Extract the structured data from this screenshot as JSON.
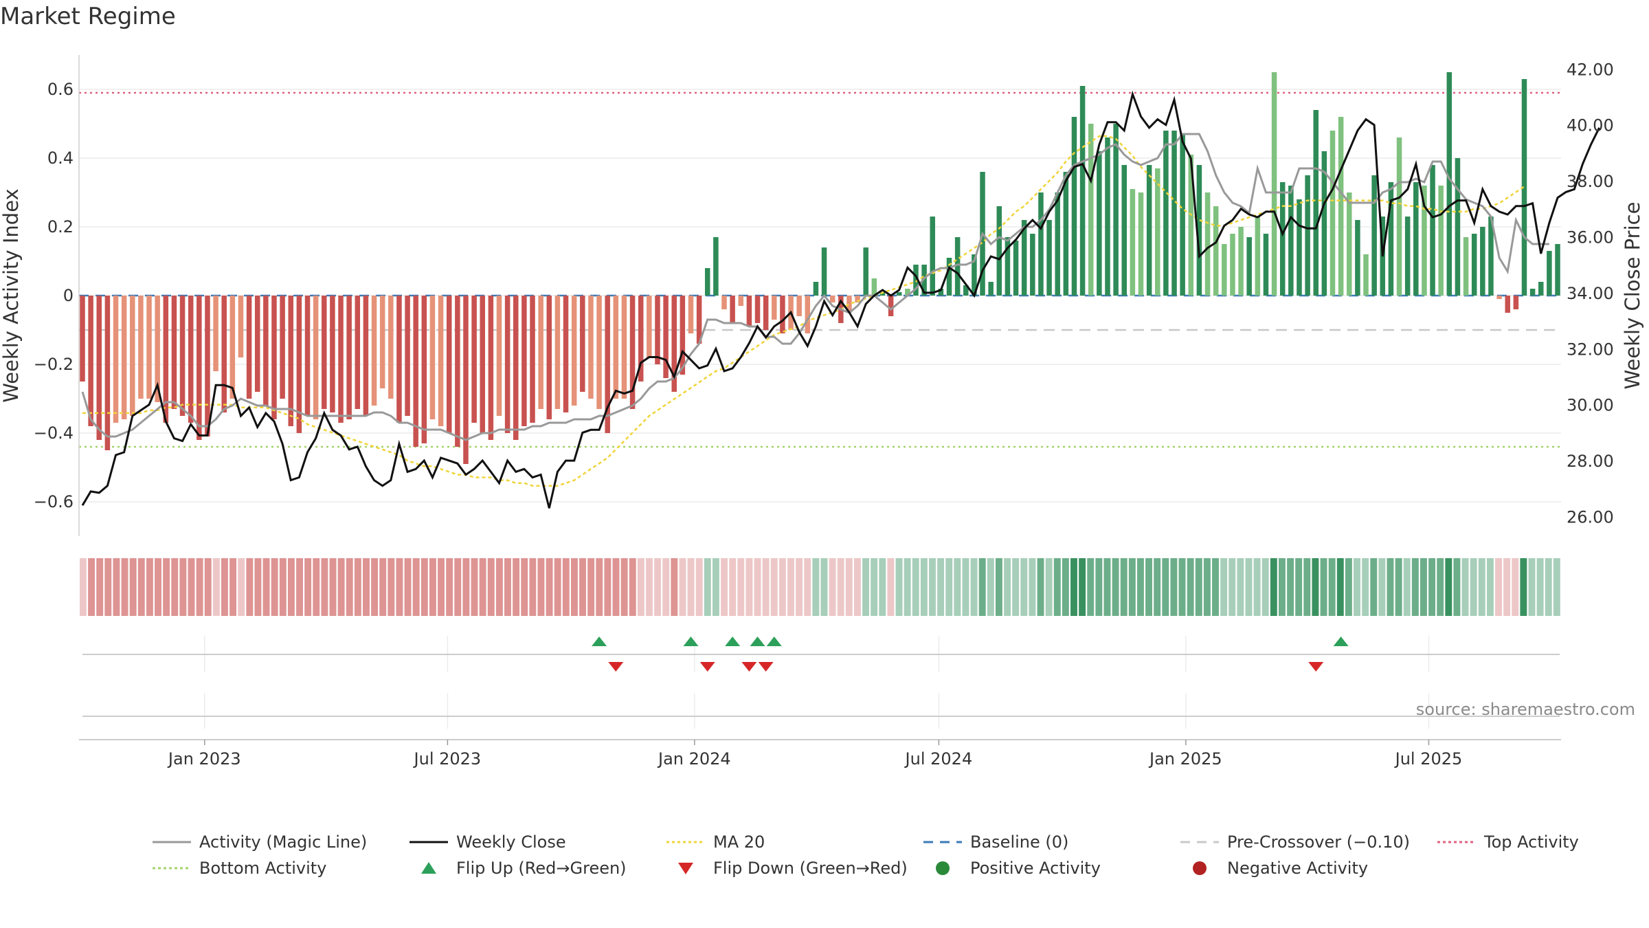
{
  "title": "Market Regime",
  "source": "source: sharemaestro.com",
  "colors": {
    "neg_strong": "#c85250",
    "neg_light": "#e59278",
    "pos_strong": "#2e8b57",
    "pos_light": "#7fc17f",
    "activity_line": "#999999",
    "close_line": "#111111",
    "ma_line": "#f0d43a",
    "baseline": "#3a7ab8",
    "pre_crossover": "#c8c8c8",
    "top_activity": "#e0607e",
    "bottom_activity": "#a5d36a",
    "flip_up": "#2ca05a",
    "flip_down": "#d62728",
    "pos_dot": "#2a8a3a",
    "neg_dot": "#b22222"
  },
  "chart_data": {
    "type": "bar",
    "left_axis": {
      "label": "Weekly Activity Index",
      "ylim": [
        -0.7,
        0.7
      ],
      "ticks": [
        "0.6",
        "0.4",
        "0.2",
        "0",
        "−0.2",
        "−0.4",
        "−0.6"
      ],
      "tick_values": [
        0.6,
        0.4,
        0.2,
        0,
        -0.2,
        -0.4,
        -0.6
      ]
    },
    "right_axis": {
      "label": "Weekly Close Price",
      "ylim": [
        25.3,
        42.5
      ],
      "ticks": [
        "42.00",
        "40.00",
        "38.00",
        "36.00",
        "34.00",
        "32.00",
        "30.00",
        "28.00",
        "26.00"
      ],
      "tick_values": [
        42,
        40,
        38,
        36,
        34,
        32,
        30,
        28,
        26
      ]
    },
    "x_axis": {
      "start": "2022-10-02",
      "end": "2025-10-05",
      "ticks": [
        {
          "label": "Jan 2023",
          "date": "2023-01-01"
        },
        {
          "label": "Jul 2023",
          "date": "2023-07-01"
        },
        {
          "label": "Jan 2024",
          "date": "2024-01-01"
        },
        {
          "label": "Jul 2024",
          "date": "2024-07-01"
        },
        {
          "label": "Jan 2025",
          "date": "2025-01-01"
        },
        {
          "label": "Jul 2025",
          "date": "2025-07-01"
        }
      ]
    },
    "reference_lines": {
      "top_activity": 0.59,
      "bottom_activity": -0.44,
      "pre_crossover": -0.1,
      "baseline": 0
    },
    "activity_index": [
      -0.25,
      -0.38,
      -0.42,
      -0.45,
      -0.37,
      -0.36,
      -0.35,
      -0.3,
      -0.3,
      -0.31,
      -0.37,
      -0.33,
      -0.35,
      -0.37,
      -0.42,
      -0.41,
      -0.22,
      -0.34,
      -0.3,
      -0.18,
      -0.3,
      -0.28,
      -0.32,
      -0.36,
      -0.3,
      -0.38,
      -0.4,
      -0.35,
      -0.36,
      -0.33,
      -0.34,
      -0.37,
      -0.36,
      -0.33,
      -0.35,
      -0.32,
      -0.27,
      -0.3,
      -0.37,
      -0.35,
      -0.44,
      -0.43,
      -0.36,
      -0.38,
      -0.4,
      -0.44,
      -0.49,
      -0.37,
      -0.4,
      -0.42,
      -0.35,
      -0.4,
      -0.42,
      -0.38,
      -0.37,
      -0.33,
      -0.36,
      -0.33,
      -0.34,
      -0.32,
      -0.28,
      -0.3,
      -0.33,
      -0.4,
      -0.3,
      -0.3,
      -0.33,
      -0.25,
      -0.18,
      -0.2,
      -0.24,
      -0.28,
      -0.23,
      -0.11,
      -0.14,
      0.08,
      0.17,
      -0.04,
      -0.08,
      -0.03,
      -0.09,
      -0.08,
      -0.1,
      -0.07,
      -0.11,
      -0.1,
      -0.06,
      -0.11,
      0.04,
      0.14,
      -0.02,
      -0.08,
      -0.05,
      -0.02,
      0.14,
      0.05,
      0.01,
      -0.06,
      0.01,
      0.02,
      0.09,
      0.09,
      0.23,
      0.02,
      0.11,
      0.17,
      0.03,
      0.12,
      0.36,
      0.04,
      0.26,
      0.17,
      0.16,
      0.22,
      0.18,
      0.3,
      0.22,
      0.3,
      0.36,
      0.52,
      0.61,
      0.5,
      0.42,
      0.46,
      0.5,
      0.38,
      0.31,
      0.3,
      0.38,
      0.37,
      0.48,
      0.48,
      0.47,
      0.41,
      0.38,
      0.3,
      0.26,
      0.15,
      0.18,
      0.2,
      0.17,
      0.23,
      0.18,
      0.65,
      0.33,
      0.32,
      0.28,
      0.35,
      0.54,
      0.42,
      0.48,
      0.52,
      0.3,
      0.22,
      0.12,
      0.35,
      0.23,
      0.33,
      0.46,
      0.23,
      0.33,
      0.32,
      0.38,
      0.32,
      0.65,
      0.4,
      0.17,
      0.18,
      0.2,
      0.23,
      -0.01,
      -0.05,
      -0.04,
      0.63,
      0.02,
      0.04,
      0.13,
      0.15
    ],
    "strong_flags": [
      1,
      1,
      1,
      1,
      0,
      0,
      0,
      0,
      0,
      0,
      1,
      1,
      1,
      1,
      1,
      1,
      0,
      1,
      0,
      0,
      1,
      1,
      1,
      1,
      1,
      1,
      1,
      1,
      0,
      1,
      1,
      1,
      1,
      1,
      1,
      0,
      0,
      0,
      1,
      1,
      1,
      1,
      0,
      0,
      1,
      1,
      1,
      1,
      1,
      1,
      0,
      1,
      1,
      1,
      1,
      0,
      1,
      0,
      1,
      0,
      1,
      0,
      0,
      1,
      0,
      0,
      1,
      1,
      0,
      1,
      1,
      1,
      1,
      0,
      1,
      1,
      1,
      0,
      1,
      0,
      1,
      1,
      1,
      0,
      1,
      0,
      0,
      0,
      1,
      1,
      0,
      1,
      0,
      0,
      1,
      0,
      1,
      1,
      1,
      0,
      1,
      1,
      1,
      1,
      1,
      1,
      1,
      1,
      1,
      1,
      1,
      1,
      1,
      1,
      1,
      1,
      1,
      1,
      1,
      1,
      1,
      0,
      1,
      1,
      1,
      1,
      0,
      0,
      1,
      0,
      1,
      1,
      1,
      0,
      1,
      0,
      0,
      0,
      0,
      0,
      1,
      0,
      1,
      0,
      1,
      1,
      1,
      1,
      1,
      1,
      0,
      0,
      0,
      1,
      0,
      1,
      1,
      1,
      0,
      1,
      1,
      0,
      1,
      0,
      1,
      1,
      0,
      1,
      1,
      1,
      0,
      1,
      1,
      1,
      1,
      1,
      1,
      1,
      1
    ],
    "activity_line": [
      -0.28,
      -0.36,
      -0.39,
      -0.41,
      -0.41,
      -0.4,
      -0.39,
      -0.37,
      -0.35,
      -0.33,
      -0.31,
      -0.31,
      -0.33,
      -0.35,
      -0.38,
      -0.38,
      -0.36,
      -0.33,
      -0.32,
      -0.3,
      -0.31,
      -0.32,
      -0.32,
      -0.33,
      -0.33,
      -0.33,
      -0.34,
      -0.35,
      -0.35,
      -0.35,
      -0.35,
      -0.35,
      -0.35,
      -0.35,
      -0.35,
      -0.34,
      -0.34,
      -0.35,
      -0.37,
      -0.37,
      -0.38,
      -0.39,
      -0.39,
      -0.39,
      -0.4,
      -0.41,
      -0.42,
      -0.41,
      -0.4,
      -0.4,
      -0.39,
      -0.39,
      -0.39,
      -0.39,
      -0.38,
      -0.38,
      -0.37,
      -0.37,
      -0.37,
      -0.36,
      -0.36,
      -0.36,
      -0.35,
      -0.35,
      -0.34,
      -0.33,
      -0.32,
      -0.3,
      -0.27,
      -0.25,
      -0.25,
      -0.24,
      -0.21,
      -0.17,
      -0.14,
      -0.07,
      -0.07,
      -0.08,
      -0.08,
      -0.08,
      -0.09,
      -0.09,
      -0.12,
      -0.12,
      -0.14,
      -0.14,
      -0.11,
      -0.07,
      -0.03,
      0.0,
      -0.03,
      -0.04,
      -0.05,
      -0.03,
      0.0,
      0.0,
      -0.02,
      -0.04,
      -0.02,
      0.0,
      0.02,
      0.05,
      0.07,
      0.08,
      0.08,
      0.09,
      0.09,
      0.1,
      0.18,
      0.15,
      0.17,
      0.16,
      0.18,
      0.2,
      0.2,
      0.22,
      0.25,
      0.3,
      0.35,
      0.38,
      0.39,
      0.4,
      0.41,
      0.43,
      0.44,
      0.41,
      0.39,
      0.38,
      0.39,
      0.4,
      0.44,
      0.44,
      0.47,
      0.47,
      0.47,
      0.42,
      0.35,
      0.3,
      0.27,
      0.26,
      0.24,
      0.37,
      0.3,
      0.3,
      0.3,
      0.3,
      0.37,
      0.37,
      0.37,
      0.36,
      0.33,
      0.3,
      0.27,
      0.27,
      0.27,
      0.27,
      0.3,
      0.31,
      0.33,
      0.33,
      0.34,
      0.33,
      0.39,
      0.39,
      0.34,
      0.31,
      0.28,
      0.27,
      0.26,
      0.23,
      0.11,
      0.07,
      0.22,
      0.17,
      0.15,
      0.15,
      0.15
    ],
    "weekly_close": [
      26.4,
      26.9,
      26.85,
      27.1,
      28.2,
      28.3,
      29.6,
      29.8,
      30.0,
      30.7,
      29.4,
      28.8,
      28.7,
      29.3,
      28.9,
      28.9,
      30.7,
      30.7,
      30.6,
      29.6,
      29.9,
      29.2,
      29.7,
      29.4,
      28.6,
      27.3,
      27.4,
      28.3,
      28.8,
      29.7,
      29.1,
      28.9,
      28.4,
      28.5,
      27.8,
      27.3,
      27.1,
      27.3,
      28.6,
      27.6,
      27.7,
      28.0,
      27.4,
      28.1,
      28.0,
      27.9,
      27.5,
      27.7,
      28.0,
      27.6,
      27.2,
      28.0,
      27.6,
      27.7,
      27.4,
      27.5,
      26.3,
      27.6,
      28.0,
      28.0,
      29.0,
      29.1,
      29.1,
      29.9,
      30.5,
      30.4,
      30.5,
      31.5,
      31.7,
      31.7,
      31.6,
      31.0,
      31.9,
      31.6,
      31.3,
      31.4,
      32.0,
      31.2,
      31.3,
      31.7,
      32.2,
      32.8,
      32.4,
      32.8,
      33.0,
      33.3,
      32.6,
      32.1,
      32.8,
      33.7,
      33.2,
      33.7,
      33.3,
      32.8,
      33.6,
      33.9,
      34.1,
      33.9,
      34.1,
      34.9,
      34.6,
      34.0,
      34.0,
      34.1,
      34.9,
      34.7,
      34.3,
      33.9,
      34.8,
      35.3,
      35.2,
      35.6,
      35.9,
      36.3,
      36.6,
      36.3,
      36.9,
      37.3,
      38.0,
      38.5,
      38.6,
      38.0,
      39.3,
      40.1,
      40.1,
      39.8,
      41.1,
      40.3,
      39.9,
      40.2,
      40.0,
      40.9,
      39.4,
      38.8,
      35.3,
      35.6,
      35.8,
      36.4,
      36.6,
      37.0,
      36.8,
      36.7,
      36.9,
      36.9,
      36.1,
      36.7,
      36.4,
      36.3,
      36.3,
      37.2,
      37.7,
      38.4,
      39.1,
      39.8,
      40.2,
      40.0,
      35.3,
      37.3,
      37.4,
      37.7,
      38.6,
      37.1,
      36.7,
      36.8,
      37.1,
      37.3,
      37.3,
      36.5,
      37.7,
      37.1,
      36.9,
      36.8,
      37.1,
      37.1,
      37.2,
      35.4,
      36.5,
      37.4,
      37.6,
      37.7,
      38.6,
      39.3,
      39.9
    ],
    "ma20": [
      29.7,
      29.7,
      29.7,
      29.7,
      29.7,
      29.7,
      29.7,
      29.7,
      29.8,
      29.8,
      29.9,
      29.9,
      30.0,
      30.0,
      30.0,
      30.0,
      30.0,
      30.0,
      30.0,
      29.9,
      29.9,
      29.9,
      29.9,
      29.8,
      29.7,
      29.6,
      29.5,
      29.3,
      29.2,
      29.1,
      29.0,
      28.9,
      28.8,
      28.7,
      28.6,
      28.5,
      28.4,
      28.3,
      28.2,
      28.0,
      27.9,
      27.8,
      27.8,
      27.7,
      27.6,
      27.5,
      27.5,
      27.4,
      27.4,
      27.4,
      27.3,
      27.3,
      27.2,
      27.2,
      27.1,
      27.1,
      27.1,
      27.1,
      27.2,
      27.3,
      27.5,
      27.7,
      27.9,
      28.1,
      28.4,
      28.7,
      29.0,
      29.3,
      29.6,
      29.8,
      30.0,
      30.2,
      30.4,
      30.6,
      30.8,
      31.0,
      31.2,
      31.3,
      31.5,
      31.7,
      31.9,
      32.1,
      32.3,
      32.5,
      32.6,
      32.7,
      32.8,
      33.0,
      33.1,
      33.2,
      33.3,
      33.4,
      33.6,
      33.7,
      33.8,
      33.9,
      34.0,
      34.1,
      34.2,
      34.3,
      34.4,
      34.6,
      34.7,
      34.8,
      35.0,
      35.2,
      35.4,
      35.6,
      35.8,
      36.1,
      36.3,
      36.6,
      36.9,
      37.1,
      37.4,
      37.7,
      38.0,
      38.3,
      38.7,
      39.0,
      39.2,
      39.4,
      39.6,
      39.6,
      39.5,
      39.2,
      38.9,
      38.5,
      38.2,
      37.9,
      37.6,
      37.3,
      37.0,
      36.8,
      36.6,
      36.5,
      36.4,
      36.4,
      36.5,
      36.6,
      36.7,
      36.8,
      36.9,
      37.0,
      37.1,
      37.1,
      37.2,
      37.3,
      37.3,
      37.3,
      37.3,
      37.3,
      37.3,
      37.3,
      37.3,
      37.3,
      37.3,
      37.2,
      37.2,
      37.1,
      37.1,
      37.0,
      37.0,
      36.9,
      36.9,
      36.9,
      36.9,
      37.0,
      37.0,
      37.1,
      37.2,
      37.4,
      37.6,
      37.8
    ],
    "regime_strip": {
      "note": ""
    },
    "flip_up_weeks": [
      62,
      73,
      78,
      81,
      83,
      151
    ],
    "flip_down_weeks": [
      64,
      75,
      80,
      82,
      148
    ]
  },
  "legend": [
    {
      "label": "Activity (Magic Line)",
      "kind": "line-solid-gray"
    },
    {
      "label": "Weekly Close",
      "kind": "line-solid-black"
    },
    {
      "label": "MA 20",
      "kind": "line-dotted-yellow"
    },
    {
      "label": "Baseline (0)",
      "kind": "line-dashed-blue"
    },
    {
      "label": "Pre-Crossover (−0.10)",
      "kind": "line-dashed-gray"
    },
    {
      "label": "Top Activity",
      "kind": "line-dotted-pink"
    },
    {
      "label": "Bottom Activity",
      "kind": "line-dotted-green"
    },
    {
      "label": "Flip Up (Red→Green)",
      "kind": "triangle-up"
    },
    {
      "label": "Flip Down (Green→Red)",
      "kind": "triangle-down"
    },
    {
      "label": "Positive Activity",
      "kind": "dot-green"
    },
    {
      "label": "Negative Activity",
      "kind": "dot-red"
    }
  ]
}
